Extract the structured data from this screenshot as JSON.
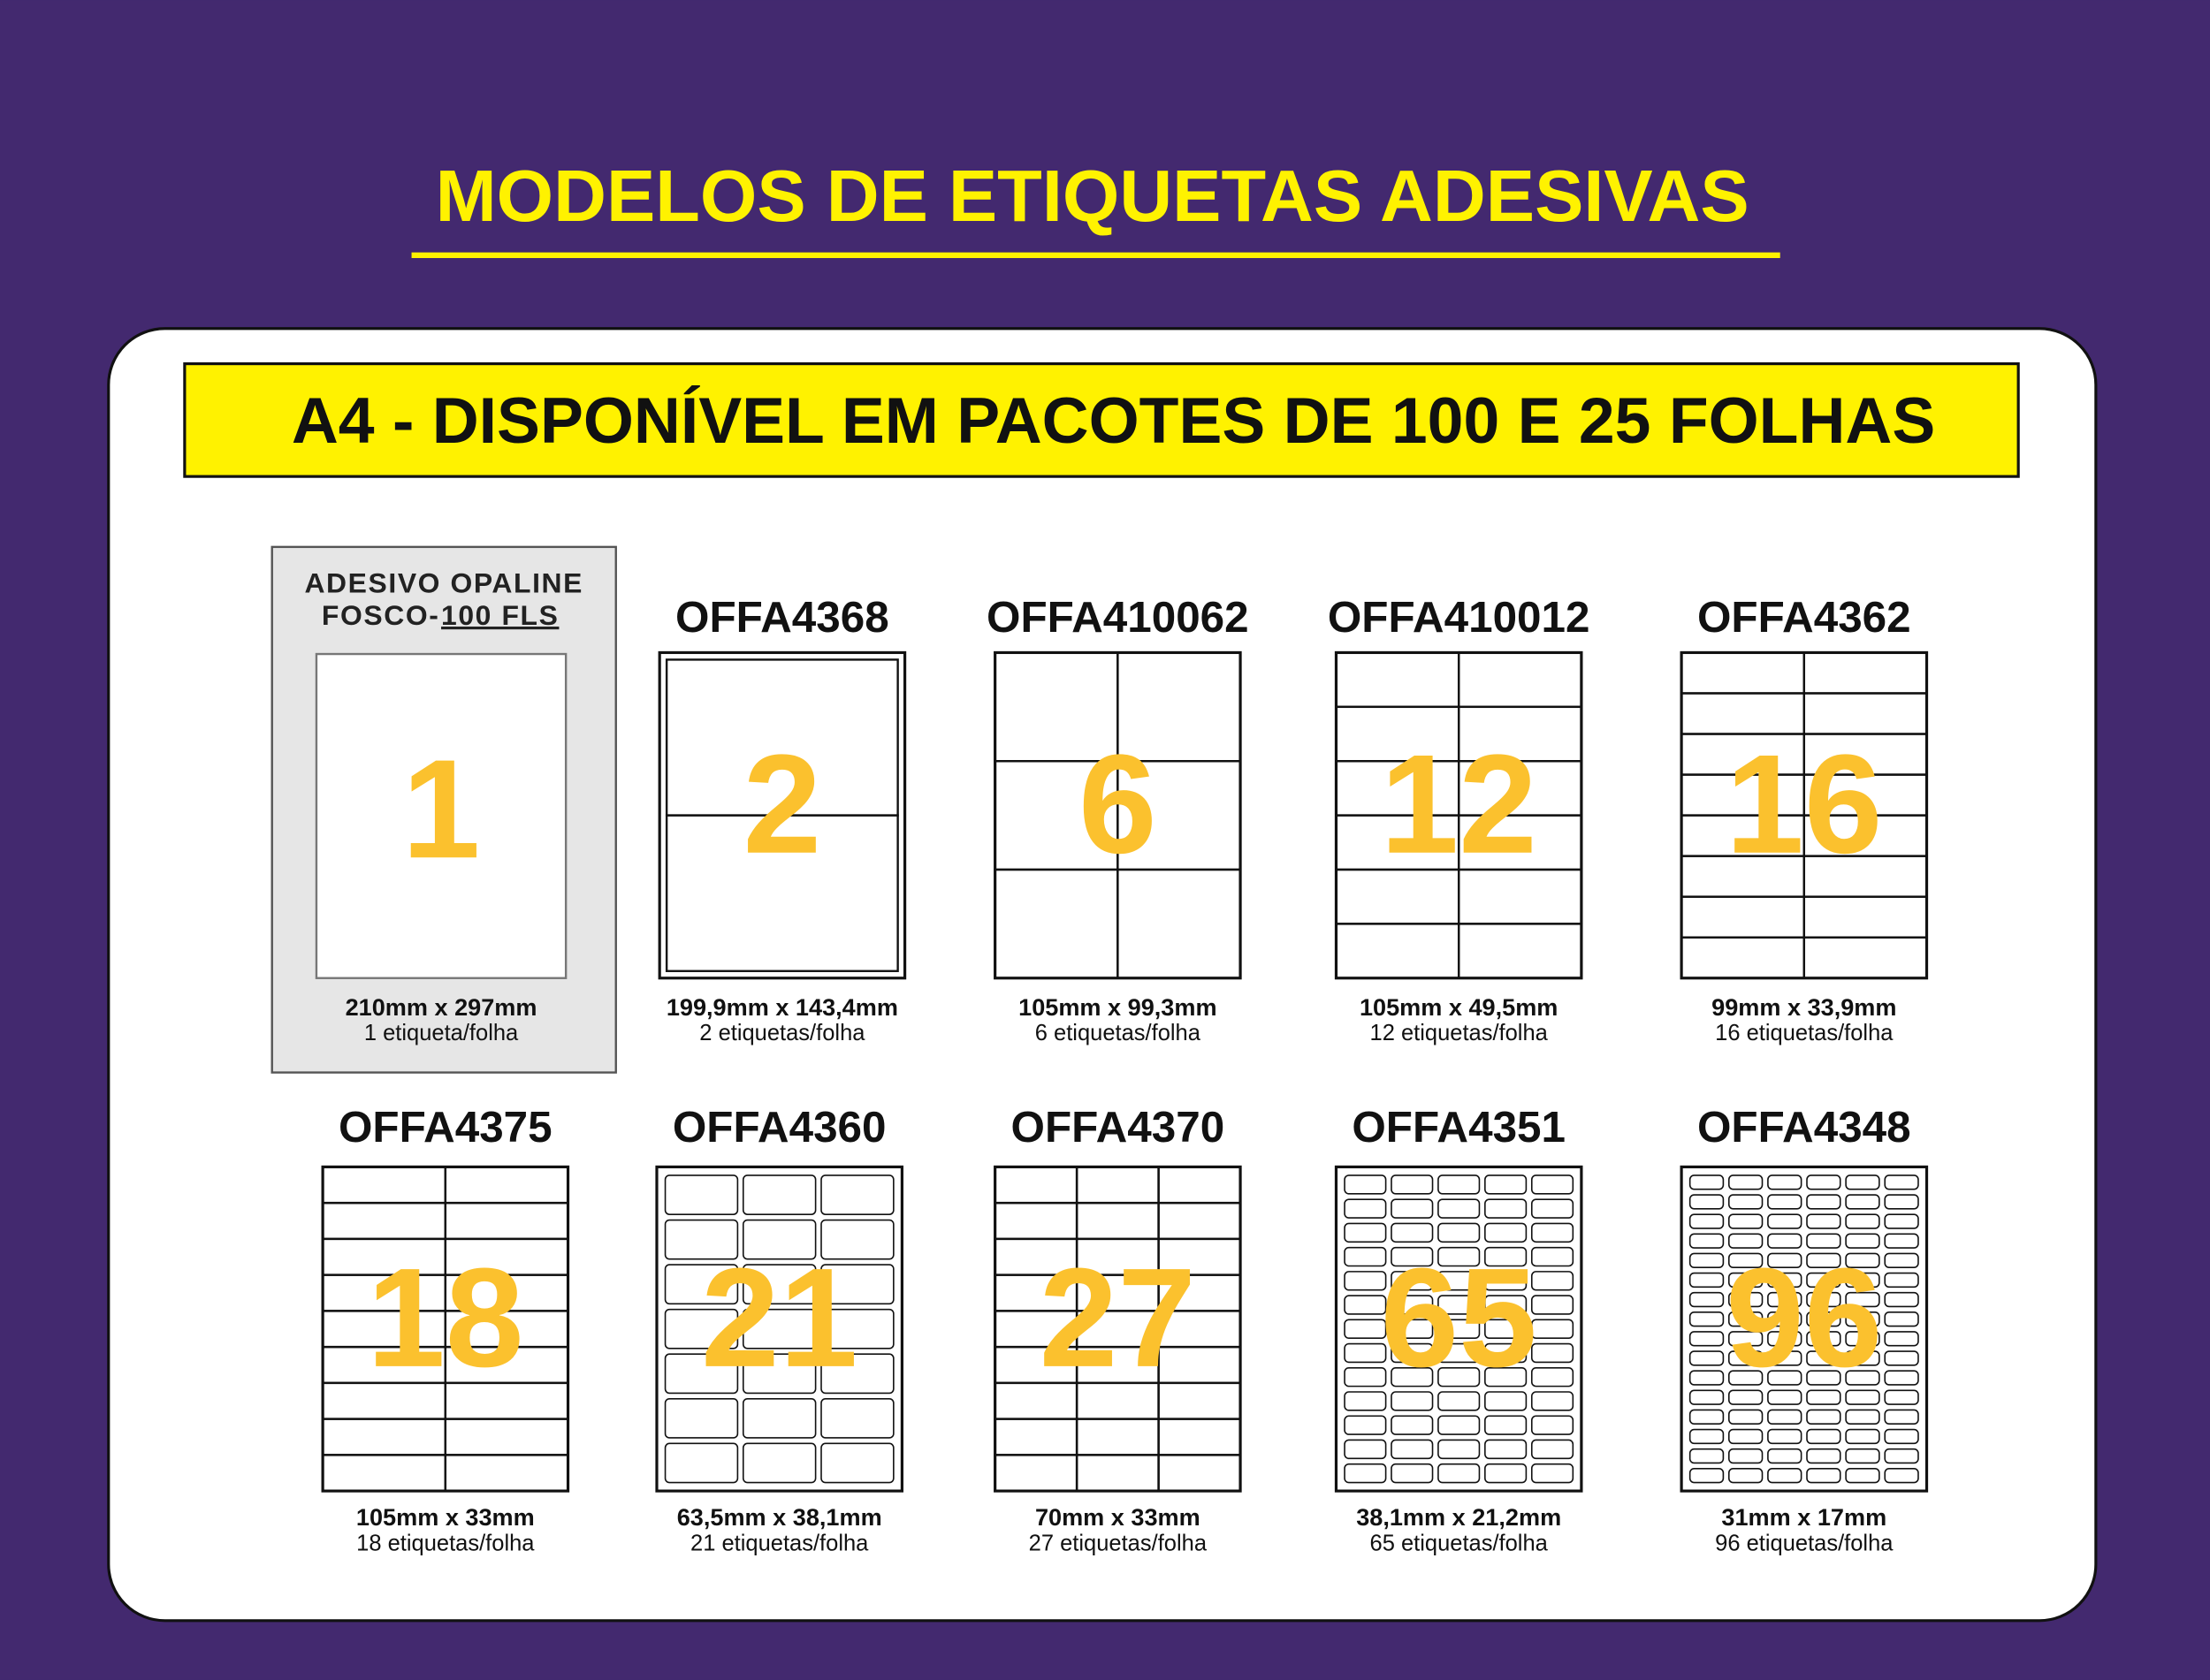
{
  "header": {
    "title": "MODELOS DE ETIQUETAS ADESIVAS"
  },
  "banner": {
    "text": "A4 - DISPONÍVEL EM PACOTES DE 100 E 25 FOLHAS"
  },
  "items": [
    {
      "label": [
        "ADESIVO OPALINE",
        "FOSCO-",
        "100 FLS"
      ],
      "count": 1,
      "size": "210mm x 297mm",
      "per_sheet": "1 etiqueta/folha"
    },
    {
      "code": "OFFA4368",
      "count": 2,
      "size": "199,9mm x 143,4mm",
      "per_sheet": "2 etiquetas/folha"
    },
    {
      "code": "OFFA410062",
      "count": 6,
      "size": "105mm x 99,3mm",
      "per_sheet": "6 etiquetas/folha"
    },
    {
      "code": "OFFA410012",
      "count": 12,
      "size": "105mm x 49,5mm",
      "per_sheet": "12 etiquetas/folha"
    },
    {
      "code": "OFFA4362",
      "count": 16,
      "size": "99mm x 33,9mm",
      "per_sheet": "16 etiquetas/folha"
    },
    {
      "code": "OFFA4375",
      "count": 18,
      "size": "105mm x 33mm",
      "per_sheet": "18 etiquetas/folha"
    },
    {
      "code": "OFFA4360",
      "count": 21,
      "size": "63,5mm x 38,1mm",
      "per_sheet": "21 etiquetas/folha"
    },
    {
      "code": "OFFA4370",
      "count": 27,
      "size": "70mm x 33mm",
      "per_sheet": "27 etiquetas/folha"
    },
    {
      "code": "OFFA4351",
      "count": 65,
      "size": "38,1mm x 21,2mm",
      "per_sheet": "65 etiquetas/folha"
    },
    {
      "code": "OFFA4348",
      "count": 96,
      "size": "31mm x 17mm",
      "per_sheet": "96 etiquetas/folha"
    }
  ]
}
